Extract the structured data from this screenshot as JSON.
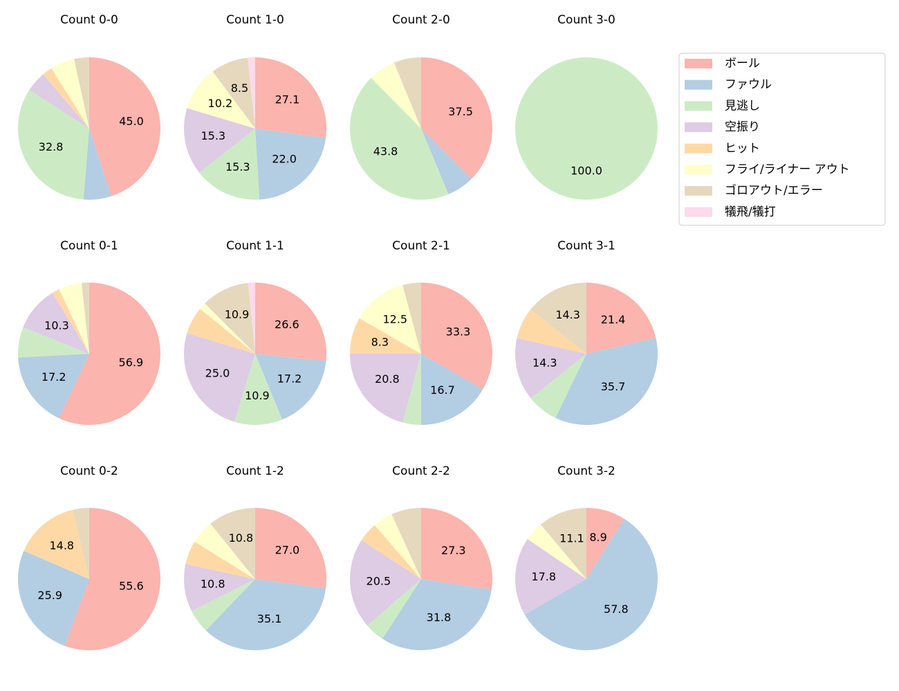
{
  "legend": {
    "labels": [
      "ボール",
      "ファウル",
      "見逃し",
      "空振り",
      "ヒット",
      "フライ/ライナー アウト",
      "ゴロアウト/エラー",
      "犠飛/犠打"
    ],
    "colors": [
      "#fbb4ae",
      "#b3cde3",
      "#ccebc5",
      "#decbe4",
      "#fed9a6",
      "#ffffcc",
      "#e5d8bd",
      "#fddaec"
    ]
  },
  "chart_data": [
    {
      "type": "pie",
      "title": "Count 0-0",
      "values": [
        45.0,
        6.3,
        32.8,
        4.7,
        2.3,
        5.5,
        3.4,
        0
      ],
      "value_labels": [
        "45.0",
        null,
        "32.8",
        null,
        null,
        null,
        null,
        null
      ]
    },
    {
      "type": "pie",
      "title": "Count 1-0",
      "values": [
        27.1,
        22.0,
        15.3,
        15.3,
        0,
        10.2,
        8.5,
        1.7
      ],
      "value_labels": [
        "27.1",
        "22.0",
        "15.3",
        "15.3",
        null,
        "10.2",
        "8.5",
        null
      ]
    },
    {
      "type": "pie",
      "title": "Count 2-0",
      "values": [
        37.5,
        6.2,
        43.8,
        0,
        0,
        6.2,
        6.2,
        0
      ],
      "value_labels": [
        "37.5",
        null,
        "43.8",
        null,
        null,
        null,
        null,
        null
      ]
    },
    {
      "type": "pie",
      "title": "Count 3-0",
      "values": [
        0,
        0,
        100.0,
        0,
        0,
        0,
        0,
        0
      ],
      "value_labels": [
        null,
        null,
        "100.0",
        null,
        null,
        null,
        null,
        null
      ]
    },
    {
      "type": "pie",
      "title": "Count 0-1",
      "values": [
        56.9,
        17.2,
        6.9,
        10.3,
        1.7,
        5.2,
        1.7,
        0
      ],
      "value_labels": [
        "56.9",
        "17.2",
        null,
        "10.3",
        null,
        null,
        null,
        null
      ]
    },
    {
      "type": "pie",
      "title": "Count 1-1",
      "values": [
        26.6,
        17.2,
        10.9,
        25.0,
        6.2,
        1.6,
        10.9,
        1.6
      ],
      "value_labels": [
        "26.6",
        "17.2",
        "10.9",
        "25.0",
        null,
        null,
        "10.9",
        null
      ]
    },
    {
      "type": "pie",
      "title": "Count 2-1",
      "values": [
        33.3,
        16.7,
        4.2,
        20.8,
        8.3,
        12.5,
        4.2,
        0
      ],
      "value_labels": [
        "33.3",
        "16.7",
        null,
        "20.8",
        "8.3",
        "12.5",
        null,
        null
      ]
    },
    {
      "type": "pie",
      "title": "Count 3-1",
      "values": [
        21.4,
        35.7,
        7.1,
        14.3,
        7.1,
        0,
        14.3,
        0
      ],
      "value_labels": [
        "21.4",
        "35.7",
        null,
        "14.3",
        null,
        null,
        "14.3",
        null
      ]
    },
    {
      "type": "pie",
      "title": "Count 0-2",
      "values": [
        55.6,
        25.9,
        0,
        0,
        14.8,
        0,
        3.7,
        0
      ],
      "value_labels": [
        "55.6",
        "25.9",
        null,
        null,
        "14.8",
        null,
        null,
        null
      ]
    },
    {
      "type": "pie",
      "title": "Count 1-2",
      "values": [
        27.0,
        35.1,
        5.4,
        10.8,
        5.4,
        5.4,
        10.8,
        0
      ],
      "value_labels": [
        "27.0",
        "35.1",
        null,
        "10.8",
        null,
        null,
        "10.8",
        null
      ]
    },
    {
      "type": "pie",
      "title": "Count 2-2",
      "values": [
        27.3,
        31.8,
        4.5,
        20.5,
        4.5,
        4.5,
        6.8,
        0
      ],
      "value_labels": [
        "27.3",
        "31.8",
        null,
        "20.5",
        null,
        null,
        null,
        null
      ]
    },
    {
      "type": "pie",
      "title": "Count 3-2",
      "values": [
        8.9,
        57.8,
        0,
        17.8,
        0,
        4.4,
        11.1,
        0
      ],
      "value_labels": [
        "8.9",
        "57.8",
        null,
        "17.8",
        null,
        null,
        "11.1",
        null
      ]
    }
  ]
}
